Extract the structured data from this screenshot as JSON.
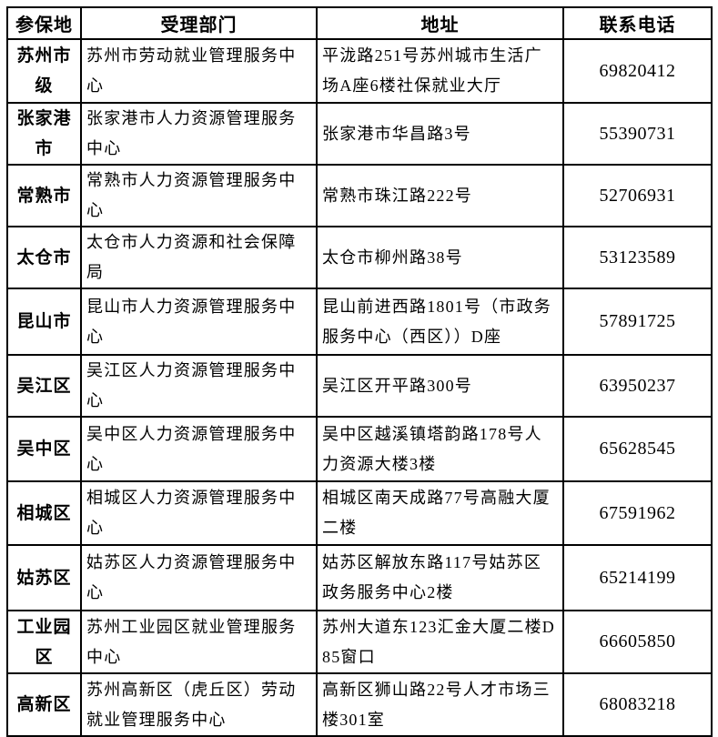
{
  "colors": {
    "background": "#ffffff",
    "border": "#000000",
    "text": "#000000"
  },
  "table": {
    "columns": [
      {
        "key": "area",
        "label": "参保地"
      },
      {
        "key": "dept",
        "label": "受理部门"
      },
      {
        "key": "address",
        "label": "地址"
      },
      {
        "key": "phone",
        "label": "联系电话"
      }
    ],
    "rows": [
      {
        "area": "苏州市级",
        "dept": "苏州市劳动就业管理服务中心",
        "address": "平泷路251号苏州城市生活广场A座6楼社保就业大厅",
        "phone": "69820412"
      },
      {
        "area": "张家港市",
        "dept": "张家港市人力资源管理服务中心",
        "address": "张家港市华昌路3号",
        "phone": "55390731"
      },
      {
        "area": "常熟市",
        "dept": "常熟市人力资源管理服务中心",
        "address": "常熟市珠江路222号",
        "phone": "52706931"
      },
      {
        "area": "太仓市",
        "dept": "太仓市人力资源和社会保障局",
        "address": "太仓市柳州路38号",
        "phone": "53123589"
      },
      {
        "area": "昆山市",
        "dept": "昆山市人力资源管理服务中心",
        "address": "昆山前进西路1801号（市政务服务中心（西区））D座",
        "phone": "57891725"
      },
      {
        "area": "吴江区",
        "dept": "吴江区人力资源管理服务中心",
        "address": "吴江区开平路300号",
        "phone": "63950237"
      },
      {
        "area": "吴中区",
        "dept": "吴中区人力资源管理服务中心",
        "address": "吴中区越溪镇塔韵路178号人力资源大楼3楼",
        "phone": "65628545"
      },
      {
        "area": "相城区",
        "dept": "相城区人力资源管理服务中心",
        "address": "相城区南天成路77号高融大厦二楼",
        "phone": "67591962"
      },
      {
        "area": "姑苏区",
        "dept": "姑苏区人力资源管理服务中心",
        "address": "姑苏区解放东路117号姑苏区政务服务中心2楼",
        "phone": "65214199"
      },
      {
        "area": "工业园区",
        "dept": "苏州工业园区就业管理服务中心",
        "address": "苏州大道东123汇金大厦二楼D85窗口",
        "phone": "66605850"
      },
      {
        "area": "高新区",
        "dept": "苏州高新区（虎丘区）劳动就业管理服务中心",
        "address": "高新区狮山路22号人才市场三楼301室",
        "phone": "68083218"
      }
    ]
  }
}
